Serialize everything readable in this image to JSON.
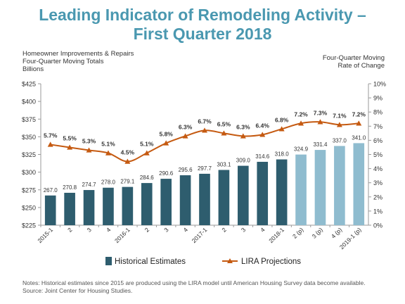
{
  "title_line1": "Leading Indicator of Remodeling Activity –",
  "title_line2": "First Quarter 2018",
  "notes_line1": "Notes: Historical estimates since 2015 are produced using the LIRA model until American Housing Survey data become available.",
  "notes_line2": "Source: Joint Center for Housing Studies.",
  "chart_data": {
    "type": "bar",
    "categories": [
      "2015-1",
      "2",
      "3",
      "4",
      "2016-1",
      "2",
      "3",
      "4",
      "2017-1",
      "2",
      "3",
      "4",
      "2018-1",
      "2 (p)",
      "3 (p)",
      "4 (p)",
      "2019-1 (p)"
    ],
    "left_axis_title": [
      "Homeowner Improvements  & Repairs",
      "Four-Quarter  Moving Totals",
      "Billions"
    ],
    "right_axis_title": [
      "Four-Quarter Moving",
      "Rate of Change"
    ],
    "y_left_range": [
      225,
      425
    ],
    "y_left_ticks": [
      "$225",
      "$250",
      "$275",
      "$300",
      "$325",
      "$350",
      "$375",
      "$400",
      "$425"
    ],
    "y_right_range": [
      0,
      10
    ],
    "y_right_ticks": [
      "0%",
      "1%",
      "2%",
      "3%",
      "4%",
      "5%",
      "6%",
      "7%",
      "8%",
      "9%",
      "10%"
    ],
    "bars": {
      "values": [
        267.0,
        270.8,
        274.7,
        278.0,
        279.1,
        284.6,
        290.6,
        295.6,
        297.7,
        303.1,
        309.0,
        314.6,
        318.0,
        324.9,
        331.4,
        337.0,
        341.0
      ],
      "labels": [
        "267.0",
        "270.8",
        "274.7",
        "278.0",
        "279.1",
        "284.6",
        "290.6",
        "295.6",
        "297.7",
        "303.1",
        "309.0",
        "314.6",
        "318.0",
        "324.9",
        "331.4",
        "337.0",
        "341.0"
      ],
      "historical_count": 13,
      "historical_color": "#2e5d6e",
      "projection_color": "#8fbccf"
    },
    "line": {
      "values": [
        5.7,
        5.5,
        5.3,
        5.1,
        4.5,
        5.1,
        5.8,
        6.3,
        6.7,
        6.5,
        6.3,
        6.4,
        6.8,
        7.2,
        7.3,
        7.1,
        7.2
      ],
      "labels": [
        "5.7%",
        "5.5%",
        "5.3%",
        "5.1%",
        "4.5%",
        "5.1%",
        "5.8%",
        "6.3%",
        "6.7%",
        "6.5%",
        "6.3%",
        "6.4%",
        "6.8%",
        "7.2%",
        "7.3%",
        "7.1%",
        "7.2%"
      ],
      "color": "#c55a11"
    },
    "legend": [
      {
        "label": "Historical Estimates",
        "color": "#2e5d6e",
        "marker": "bar"
      },
      {
        "label": "LIRA Projections",
        "color": "#c55a11",
        "marker": "line-triangle"
      }
    ],
    "legend_position": "bottom",
    "grid": false
  }
}
